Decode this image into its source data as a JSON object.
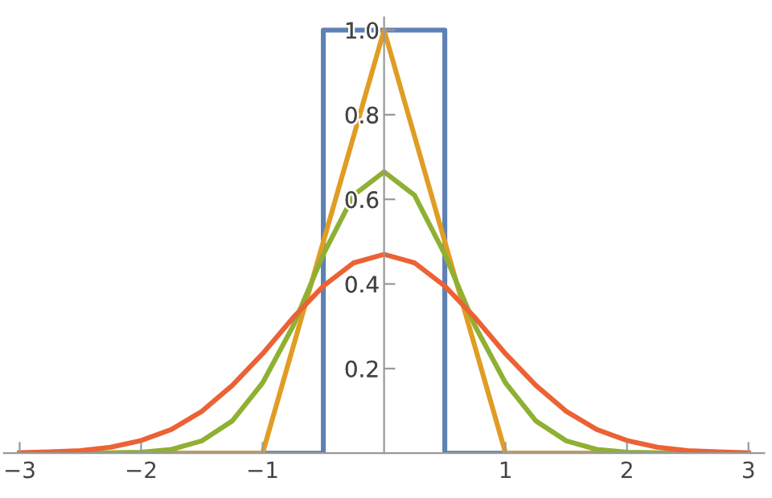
{
  "chart_data": {
    "type": "line",
    "xlim": [
      -3.13,
      3.13
    ],
    "ylim": [
      0,
      1.03
    ],
    "xticks": [
      {
        "value": -3,
        "label": "−3"
      },
      {
        "value": -2,
        "label": "−2"
      },
      {
        "value": -1,
        "label": "−1"
      },
      1,
      2,
      3
    ],
    "yticks": [
      0.2,
      0.4,
      0.6,
      0.8,
      {
        "value": 1.0,
        "label": "1.0"
      }
    ],
    "grid": false,
    "legend": false,
    "marker": "none",
    "line_style": "solid",
    "series": [
      {
        "color": "#5e81b5",
        "x": [
          -3,
          -0.5,
          -0.5,
          0.5,
          0.5,
          3
        ],
        "values": [
          0,
          0,
          1,
          1,
          0,
          0
        ]
      },
      {
        "color": "#e19c24",
        "x": [
          -3,
          -1,
          0,
          1,
          3
        ],
        "values": [
          0,
          0,
          1,
          0,
          0
        ]
      },
      {
        "color": "#8fb032",
        "x": [
          -3,
          -2.5,
          -2,
          -1.75,
          -1.5,
          -1.25,
          -1,
          -0.75,
          -0.5,
          -0.25,
          0,
          0.25,
          0.5,
          0.75,
          1,
          1.25,
          1.5,
          1.75,
          2,
          2.5,
          3
        ],
        "values": [
          0,
          0,
          0.002,
          0.009,
          0.029,
          0.076,
          0.166,
          0.3,
          0.47,
          0.61,
          0.665,
          0.61,
          0.47,
          0.3,
          0.166,
          0.076,
          0.029,
          0.009,
          0.002,
          0,
          0
        ]
      },
      {
        "color": "#eb6235",
        "x": [
          -3,
          -2.75,
          -2.5,
          -2.25,
          -2,
          -1.75,
          -1.5,
          -1.25,
          -1,
          -0.75,
          -0.5,
          -0.25,
          0,
          0.25,
          0.5,
          0.75,
          1,
          1.25,
          1.5,
          1.75,
          2,
          2.25,
          2.5,
          2.75,
          3
        ],
        "values": [
          0.001,
          0.003,
          0.006,
          0.014,
          0.03,
          0.056,
          0.099,
          0.16,
          0.235,
          0.32,
          0.395,
          0.45,
          0.47,
          0.45,
          0.395,
          0.32,
          0.235,
          0.16,
          0.099,
          0.056,
          0.03,
          0.014,
          0.006,
          0.003,
          0.001
        ]
      }
    ]
  }
}
